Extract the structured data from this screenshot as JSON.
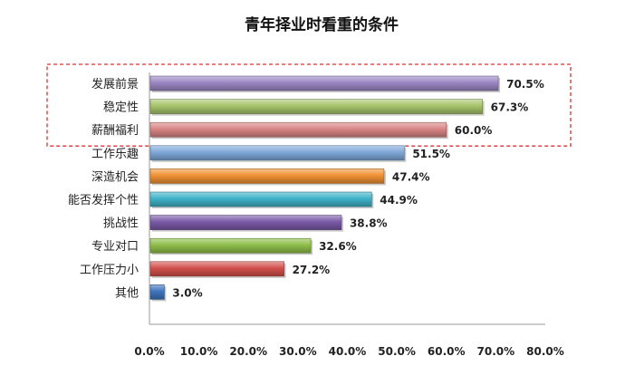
{
  "chart_data": {
    "type": "bar",
    "orientation": "horizontal",
    "title": "青年择业时看重的条件",
    "categories": [
      "发展前景",
      "稳定性",
      "薪酬福利",
      "工作乐趣",
      "深造机会",
      "能否发挥个性",
      "挑战性",
      "专业对口",
      "工作压力小",
      "其他"
    ],
    "values": [
      70.5,
      67.3,
      60.0,
      51.5,
      47.4,
      44.9,
      38.8,
      32.6,
      27.2,
      3.0
    ],
    "value_labels": [
      "70.5%",
      "67.3%",
      "60.0%",
      "51.5%",
      "47.4%",
      "44.9%",
      "38.8%",
      "32.6%",
      "27.2%",
      "3.0%"
    ],
    "colors": [
      "#9b87c4",
      "#a6c46a",
      "#d98585",
      "#7fa8d8",
      "#f09133",
      "#3fb3c8",
      "#7a5aa6",
      "#8fbf4a",
      "#d2514d",
      "#3f74bd"
    ],
    "xlim": [
      0,
      80
    ],
    "xticks": [
      0,
      10,
      20,
      30,
      40,
      50,
      60,
      70,
      80
    ],
    "xtick_labels": [
      "0.0%",
      "10.0%",
      "20.0%",
      "30.0%",
      "40.0%",
      "50.0%",
      "60.0%",
      "70.0%",
      "80.0%"
    ],
    "grid": false,
    "highlight": {
      "categories": [
        "发展前景",
        "稳定性",
        "薪酬福利"
      ],
      "style": "dashed red box",
      "color": "#e03030"
    },
    "xlabel": "",
    "ylabel": ""
  }
}
